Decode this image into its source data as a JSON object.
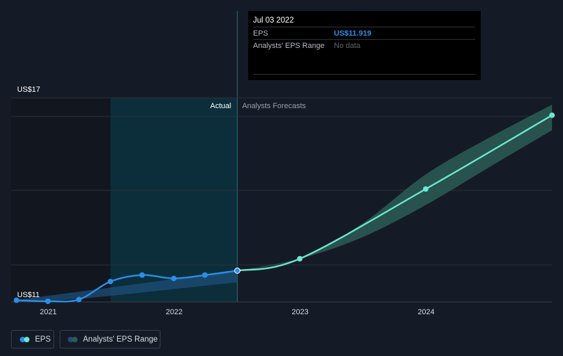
{
  "colors": {
    "background": "#151b26",
    "actual_line": "#2b8fe8",
    "forecast_line": "#6ee6d0",
    "forecast_band": "#2c5c56",
    "actual_band": "#1d4f78",
    "actual_region": "#0b3140"
  },
  "chart_data": {
    "type": "line",
    "y_top_label": "US$17",
    "y_bottom_label": "US$11",
    "ylim": [
      11,
      17
    ],
    "x_ticks": [
      "2021",
      "2022",
      "2023",
      "2024"
    ],
    "xlim": [
      "2020-09-15",
      "2024-12-31"
    ],
    "region_labels": {
      "actual": "Actual",
      "forecast": "Analysts Forecasts"
    },
    "actual_region_start": "2021-07-01",
    "divider_date": "2022-07-03",
    "series": [
      {
        "name": "EPS",
        "kind": "actual",
        "points": [
          {
            "x": "2020-10-01",
            "y": 11.05
          },
          {
            "x": "2020-12-31",
            "y": 11.02
          },
          {
            "x": "2021-03-31",
            "y": 11.07
          },
          {
            "x": "2021-06-30",
            "y": 11.6
          },
          {
            "x": "2021-09-30",
            "y": 11.79
          },
          {
            "x": "2021-12-31",
            "y": 11.69
          },
          {
            "x": "2022-03-31",
            "y": 11.79
          },
          {
            "x": "2022-07-03",
            "y": 11.919
          }
        ]
      },
      {
        "name": "EPS",
        "kind": "forecast",
        "points": [
          {
            "x": "2022-07-03",
            "y": 11.919
          },
          {
            "x": "2022-12-31",
            "y": 12.27
          },
          {
            "x": "2023-12-31",
            "y": 14.32
          },
          {
            "x": "2024-12-31",
            "y": 16.49
          }
        ]
      }
    ],
    "ranges": [
      {
        "name": "Analysts' EPS Range",
        "kind": "actual",
        "points": [
          {
            "x": "2020-10-01",
            "low": 11.0,
            "high": 11.06
          },
          {
            "x": "2021-03-31",
            "low": 11.09,
            "high": 11.3
          },
          {
            "x": "2022-07-03",
            "low": 11.58,
            "high": 11.92
          }
        ]
      },
      {
        "name": "Analysts' EPS Range",
        "kind": "forecast",
        "points": [
          {
            "x": "2022-07-03",
            "low": 11.92,
            "high": 11.92
          },
          {
            "x": "2022-12-31",
            "low": 12.27,
            "high": 12.27
          },
          {
            "x": "2023-06-30",
            "low": 12.9,
            "high": 13.3
          },
          {
            "x": "2023-12-31",
            "low": 13.85,
            "high": 14.75
          },
          {
            "x": "2024-06-30",
            "low": 14.95,
            "high": 15.82
          },
          {
            "x": "2024-12-31",
            "low": 16.05,
            "high": 16.8
          }
        ]
      }
    ],
    "legend": [
      "EPS",
      "Analysts' EPS Range"
    ],
    "legend_position": "bottom-left",
    "grid": true
  },
  "tooltip": {
    "date": "Jul 03 2022",
    "rows": [
      {
        "key": "EPS",
        "value": "US$11.919",
        "muted": false
      },
      {
        "key": "Analysts' EPS Range",
        "value": "No data",
        "muted": true
      }
    ]
  },
  "legend": {
    "eps_label": "EPS",
    "range_label": "Analysts' EPS Range"
  }
}
